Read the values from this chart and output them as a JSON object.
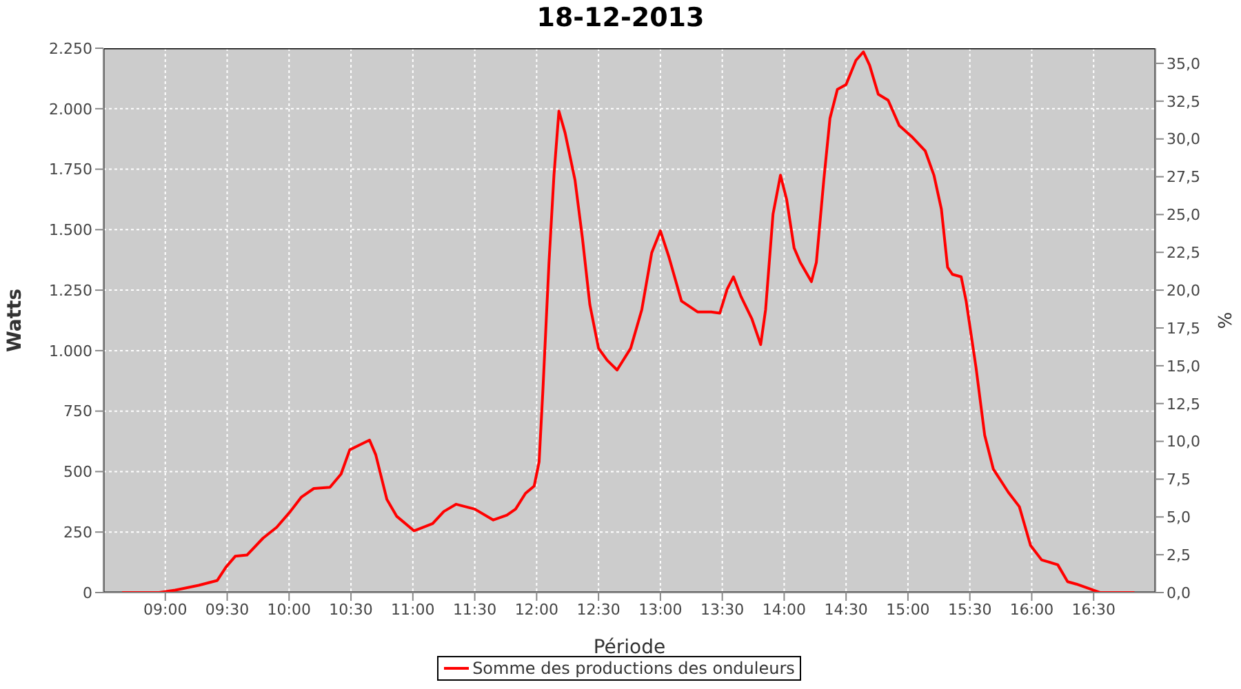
{
  "chart_data": {
    "type": "line",
    "title": "18-12-2013",
    "xlabel": "Période",
    "ylabel": "Watts",
    "y2label": "%",
    "x": [
      8.65,
      8.95,
      9.08,
      9.27,
      9.42,
      9.49,
      9.565,
      9.66,
      9.79,
      9.9,
      10.01,
      10.1,
      10.2,
      10.33,
      10.42,
      10.49,
      10.57,
      10.65,
      10.7,
      10.79,
      10.87,
      11.01,
      11.16,
      11.25,
      11.35,
      11.5,
      11.65,
      11.76,
      11.83,
      11.91,
      11.98,
      12.02,
      12.05,
      12.1,
      12.14,
      12.18,
      12.23,
      12.31,
      12.37,
      12.43,
      12.5,
      12.57,
      12.65,
      12.76,
      12.85,
      12.93,
      13.0,
      13.07,
      13.17,
      13.3,
      13.41,
      13.48,
      13.54,
      13.59,
      13.65,
      13.74,
      13.81,
      13.85,
      13.91,
      13.97,
      14.02,
      14.08,
      14.13,
      14.22,
      14.26,
      14.32,
      14.37,
      14.43,
      14.5,
      14.58,
      14.64,
      14.69,
      14.76,
      14.84,
      14.93,
      15.03,
      15.14,
      15.21,
      15.27,
      15.32,
      15.36,
      15.43,
      15.47,
      15.55,
      15.62,
      15.69,
      15.81,
      15.9,
      15.99,
      16.08,
      16.21,
      16.29,
      16.36,
      16.47,
      16.55,
      16.83
    ],
    "series": [
      {
        "name": "Somme des productions des onduleurs",
        "color": "#ff0000",
        "values": [
          0,
          0,
          10,
          30,
          50,
          105,
          150,
          155,
          225,
          270,
          335,
          395,
          430,
          435,
          490,
          590,
          610,
          630,
          570,
          385,
          315,
          255,
          285,
          335,
          365,
          345,
          300,
          320,
          345,
          410,
          440,
          540,
          830,
          1365,
          1725,
          1990,
          1900,
          1705,
          1465,
          1190,
          1010,
          960,
          920,
          1010,
          1170,
          1405,
          1495,
          1385,
          1205,
          1160,
          1160,
          1155,
          1255,
          1305,
          1225,
          1130,
          1025,
          1170,
          1565,
          1725,
          1625,
          1425,
          1365,
          1285,
          1365,
          1705,
          1960,
          2080,
          2100,
          2200,
          2235,
          2180,
          2060,
          2035,
          1930,
          1885,
          1825,
          1725,
          1585,
          1345,
          1315,
          1305,
          1205,
          930,
          650,
          510,
          415,
          355,
          195,
          135,
          115,
          45,
          35,
          15,
          0,
          0
        ]
      }
    ],
    "xlim": [
      8.5,
      17
    ],
    "xticks": [
      {
        "value": 9,
        "label": "09:00"
      },
      {
        "value": 9.5,
        "label": "09:30"
      },
      {
        "value": 10,
        "label": "10:00"
      },
      {
        "value": 10.5,
        "label": "10:30"
      },
      {
        "value": 11,
        "label": "11:00"
      },
      {
        "value": 11.5,
        "label": "11:30"
      },
      {
        "value": 12,
        "label": "12:00"
      },
      {
        "value": 12.5,
        "label": "12:30"
      },
      {
        "value": 13,
        "label": "13:00"
      },
      {
        "value": 13.5,
        "label": "13:30"
      },
      {
        "value": 14,
        "label": "14:00"
      },
      {
        "value": 14.5,
        "label": "14:30"
      },
      {
        "value": 15,
        "label": "15:00"
      },
      {
        "value": 15.5,
        "label": "15:30"
      },
      {
        "value": 16,
        "label": "16:00"
      },
      {
        "value": 16.5,
        "label": "16:30"
      }
    ],
    "ylim": [
      0,
      2250
    ],
    "yticks": [
      0,
      250,
      500,
      750,
      {
        "value": 1000,
        "label": "1.000"
      },
      {
        "value": 1250,
        "label": "1.250"
      },
      {
        "value": 1500,
        "label": "1.500"
      },
      {
        "value": 1750,
        "label": "1.750"
      },
      {
        "value": 2000,
        "label": "2.000"
      },
      {
        "value": 2250,
        "label": "2.250"
      }
    ],
    "y2lim": [
      0,
      36
    ],
    "y2ticks": [
      {
        "value": 0,
        "label": "0,0"
      },
      {
        "value": 2.5,
        "label": "2,5"
      },
      {
        "value": 5,
        "label": "5,0"
      },
      {
        "value": 7.5,
        "label": "7,5"
      },
      {
        "value": 10,
        "label": "10,0"
      },
      {
        "value": 12.5,
        "label": "12,5"
      },
      {
        "value": 15,
        "label": "15,0"
      },
      {
        "value": 17.5,
        "label": "17,5"
      },
      {
        "value": 20,
        "label": "20,0"
      },
      {
        "value": 22.5,
        "label": "22,5"
      },
      {
        "value": 25,
        "label": "25,0"
      },
      {
        "value": 27.5,
        "label": "27,5"
      },
      {
        "value": 30,
        "label": "30,0"
      },
      {
        "value": 32.5,
        "label": "32,5"
      },
      {
        "value": 35,
        "label": "35,0"
      }
    ],
    "grid": true,
    "legend": "bottom",
    "marker": "none",
    "line_style": "solid"
  }
}
